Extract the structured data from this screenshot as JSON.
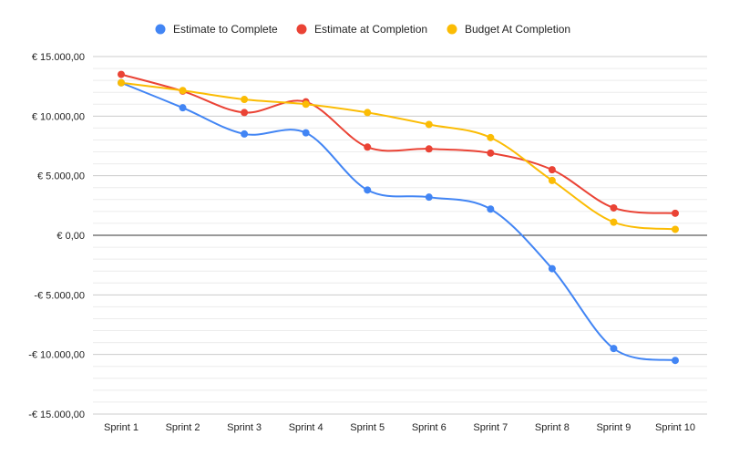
{
  "chart_data": {
    "type": "line",
    "smooth": true,
    "categories": [
      "Sprint 1",
      "Sprint 2",
      "Sprint 3",
      "Sprint 4",
      "Sprint 5",
      "Sprint 6",
      "Sprint 7",
      "Sprint 8",
      "Sprint 9",
      "Sprint 10"
    ],
    "series": [
      {
        "name": "Estimate to Complete",
        "color": "#4285f4",
        "values": [
          12800,
          10700,
          8500,
          8600,
          3800,
          3200,
          2200,
          -2800,
          -9500,
          -10500
        ]
      },
      {
        "name": "Estimate at Completion",
        "color": "#ea4335",
        "values": [
          13500,
          12100,
          10300,
          11200,
          7400,
          7250,
          6900,
          5500,
          2300,
          1850
        ]
      },
      {
        "name": "Budget At Completion",
        "color": "#fbbc04",
        "values": [
          12800,
          12150,
          11400,
          11000,
          10300,
          9300,
          8200,
          4600,
          1100,
          500
        ]
      }
    ],
    "ylim": [
      -15000,
      15000
    ],
    "y_ticks": [
      {
        "value": 15000,
        "label": "€ 15.000,00"
      },
      {
        "value": 10000,
        "label": "€ 10.000,00"
      },
      {
        "value": 5000,
        "label": "€ 5.000,00"
      },
      {
        "value": 0,
        "label": "€ 0,00"
      },
      {
        "value": -5000,
        "label": "-€ 5.000,00"
      },
      {
        "value": -10000,
        "label": "-€ 10.000,00"
      },
      {
        "value": -15000,
        "label": "-€ 15.000,00"
      }
    ],
    "minor_grid_step": 1000,
    "grid": true,
    "legend_position": "top"
  }
}
